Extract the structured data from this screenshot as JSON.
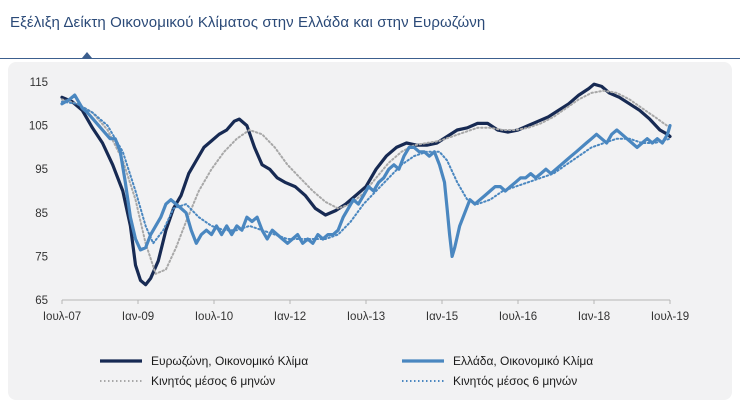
{
  "title": "Εξέλιξη Δείκτη Οικονομικού Κλίματος στην Ελλάδα και στην Ευρωζώνη",
  "colors": {
    "title": "#2b4a78",
    "eurozone": "#172a53",
    "greece": "#4a87c0",
    "eurozone_ma": "#a8a8a8",
    "greece_ma": "#4a87c0"
  },
  "chart_data": {
    "type": "line",
    "title": "Εξέλιξη Δείκτη Οικονομικού Κλίματος στην Ελλάδα και στην Ευρωζώνη",
    "xlabel": "",
    "ylabel": "",
    "x_ticks": [
      "Ιουλ-07",
      "Ιαν-09",
      "Ιουλ-10",
      "Ιαν-12",
      "Ιουλ-13",
      "Ιαν-15",
      "Ιουλ-16",
      "Ιαν-18",
      "Ιουλ-19"
    ],
    "y_ticks": [
      65,
      75,
      85,
      95,
      105,
      115
    ],
    "ylim": [
      65,
      115
    ],
    "xlim": [
      2007.5,
      2019.5
    ],
    "grid": false,
    "legend_placement": "bottom",
    "legend": {
      "eurozone": "Ευρωζώνη, Οικονομικό Κλίμα",
      "greece": "Ελλάδα, Οικονομικό Κλίμα",
      "eurozone_ma": "Κινητός μέσος 6 μηνών",
      "greece_ma": "Κινητός μέσος 6 μηνών"
    },
    "series": [
      {
        "name": "Ευρωζώνη, Οικονομικό Κλίμα",
        "key": "eurozone",
        "style": "solid",
        "points": [
          [
            2007.5,
            111.5
          ],
          [
            2007.7,
            110.5
          ],
          [
            2007.9,
            108.5
          ],
          [
            2008.1,
            104.5
          ],
          [
            2008.3,
            101
          ],
          [
            2008.5,
            96
          ],
          [
            2008.7,
            90
          ],
          [
            2008.85,
            82
          ],
          [
            2008.95,
            73
          ],
          [
            2009.05,
            69.5
          ],
          [
            2009.15,
            68.5
          ],
          [
            2009.25,
            70
          ],
          [
            2009.4,
            74
          ],
          [
            2009.55,
            81
          ],
          [
            2009.7,
            86
          ],
          [
            2009.85,
            89
          ],
          [
            2010.0,
            94
          ],
          [
            2010.15,
            97
          ],
          [
            2010.3,
            100
          ],
          [
            2010.45,
            101.5
          ],
          [
            2010.6,
            103
          ],
          [
            2010.75,
            104
          ],
          [
            2010.9,
            106
          ],
          [
            2011.0,
            106.5
          ],
          [
            2011.15,
            105
          ],
          [
            2011.3,
            100
          ],
          [
            2011.45,
            96
          ],
          [
            2011.6,
            95
          ],
          [
            2011.75,
            93
          ],
          [
            2011.9,
            92
          ],
          [
            2012.1,
            91
          ],
          [
            2012.3,
            89
          ],
          [
            2012.5,
            86
          ],
          [
            2012.7,
            84.5
          ],
          [
            2012.9,
            85.5
          ],
          [
            2013.1,
            87
          ],
          [
            2013.3,
            89
          ],
          [
            2013.5,
            91
          ],
          [
            2013.7,
            95
          ],
          [
            2013.9,
            98
          ],
          [
            2014.1,
            100
          ],
          [
            2014.3,
            101
          ],
          [
            2014.5,
            100.5
          ],
          [
            2014.7,
            100.5
          ],
          [
            2014.9,
            101
          ],
          [
            2015.1,
            102.5
          ],
          [
            2015.3,
            104
          ],
          [
            2015.5,
            104.5
          ],
          [
            2015.7,
            105.5
          ],
          [
            2015.9,
            105.5
          ],
          [
            2016.1,
            104
          ],
          [
            2016.3,
            103.5
          ],
          [
            2016.5,
            104
          ],
          [
            2016.7,
            105
          ],
          [
            2016.9,
            106
          ],
          [
            2017.1,
            107
          ],
          [
            2017.3,
            108.5
          ],
          [
            2017.5,
            110
          ],
          [
            2017.7,
            112
          ],
          [
            2017.9,
            113.5
          ],
          [
            2018.0,
            114.5
          ],
          [
            2018.15,
            114
          ],
          [
            2018.3,
            112.5
          ],
          [
            2018.5,
            111.5
          ],
          [
            2018.7,
            110
          ],
          [
            2018.9,
            108.5
          ],
          [
            2019.1,
            106.5
          ],
          [
            2019.3,
            104
          ],
          [
            2019.45,
            103
          ],
          [
            2019.5,
            102.5
          ]
        ]
      },
      {
        "name": "Κινητός μέσος 6 μηνών",
        "key": "eurozone_ma",
        "style": "dotted",
        "points": [
          [
            2007.5,
            111
          ],
          [
            2007.8,
            110
          ],
          [
            2008.1,
            108
          ],
          [
            2008.4,
            104
          ],
          [
            2008.7,
            97
          ],
          [
            2008.95,
            88
          ],
          [
            2009.15,
            78
          ],
          [
            2009.35,
            71
          ],
          [
            2009.55,
            72
          ],
          [
            2009.75,
            77
          ],
          [
            2009.95,
            83
          ],
          [
            2010.2,
            90
          ],
          [
            2010.45,
            95
          ],
          [
            2010.7,
            99
          ],
          [
            2010.95,
            102
          ],
          [
            2011.2,
            104
          ],
          [
            2011.45,
            103
          ],
          [
            2011.7,
            100
          ],
          [
            2011.95,
            96
          ],
          [
            2012.2,
            93
          ],
          [
            2012.45,
            90
          ],
          [
            2012.7,
            87.5
          ],
          [
            2012.95,
            86
          ],
          [
            2013.2,
            87
          ],
          [
            2013.45,
            89.5
          ],
          [
            2013.7,
            93
          ],
          [
            2013.95,
            96.5
          ],
          [
            2014.2,
            99
          ],
          [
            2014.45,
            100.5
          ],
          [
            2014.7,
            101
          ],
          [
            2014.95,
            101.5
          ],
          [
            2015.2,
            102.5
          ],
          [
            2015.45,
            103.5
          ],
          [
            2015.7,
            104.5
          ],
          [
            2015.95,
            104.5
          ],
          [
            2016.2,
            104
          ],
          [
            2016.45,
            104
          ],
          [
            2016.7,
            104.5
          ],
          [
            2016.95,
            105.5
          ],
          [
            2017.2,
            107
          ],
          [
            2017.45,
            109
          ],
          [
            2017.7,
            111
          ],
          [
            2017.95,
            112.5
          ],
          [
            2018.2,
            113
          ],
          [
            2018.45,
            112.5
          ],
          [
            2018.7,
            111
          ],
          [
            2018.95,
            109
          ],
          [
            2019.2,
            107
          ],
          [
            2019.5,
            104.5
          ]
        ]
      },
      {
        "name": "Ελλάδα, Οικονομικό Κλίμα",
        "key": "greece",
        "style": "solid",
        "points": [
          [
            2007.5,
            110
          ],
          [
            2007.65,
            111
          ],
          [
            2007.75,
            112
          ],
          [
            2007.9,
            109
          ],
          [
            2008.0,
            108
          ],
          [
            2008.15,
            106
          ],
          [
            2008.3,
            104
          ],
          [
            2008.45,
            102
          ],
          [
            2008.55,
            102
          ],
          [
            2008.65,
            99
          ],
          [
            2008.75,
            92
          ],
          [
            2008.85,
            84
          ],
          [
            2008.95,
            79
          ],
          [
            2009.05,
            76.5
          ],
          [
            2009.15,
            77
          ],
          [
            2009.25,
            80
          ],
          [
            2009.35,
            82
          ],
          [
            2009.45,
            84
          ],
          [
            2009.55,
            87
          ],
          [
            2009.65,
            88
          ],
          [
            2009.75,
            87
          ],
          [
            2009.85,
            86
          ],
          [
            2009.95,
            85
          ],
          [
            2010.05,
            81
          ],
          [
            2010.15,
            78
          ],
          [
            2010.25,
            80
          ],
          [
            2010.35,
            81
          ],
          [
            2010.45,
            80
          ],
          [
            2010.55,
            82
          ],
          [
            2010.65,
            80
          ],
          [
            2010.75,
            82
          ],
          [
            2010.85,
            80
          ],
          [
            2010.95,
            82
          ],
          [
            2011.05,
            81
          ],
          [
            2011.15,
            84
          ],
          [
            2011.25,
            83
          ],
          [
            2011.35,
            84
          ],
          [
            2011.45,
            81
          ],
          [
            2011.55,
            79
          ],
          [
            2011.65,
            81
          ],
          [
            2011.75,
            80
          ],
          [
            2011.85,
            79
          ],
          [
            2011.95,
            78
          ],
          [
            2012.05,
            79
          ],
          [
            2012.15,
            80
          ],
          [
            2012.25,
            78
          ],
          [
            2012.35,
            79
          ],
          [
            2012.45,
            78
          ],
          [
            2012.55,
            80
          ],
          [
            2012.65,
            79
          ],
          [
            2012.75,
            80
          ],
          [
            2012.85,
            80
          ],
          [
            2012.95,
            81
          ],
          [
            2013.05,
            84
          ],
          [
            2013.15,
            86
          ],
          [
            2013.25,
            88
          ],
          [
            2013.35,
            87
          ],
          [
            2013.45,
            89
          ],
          [
            2013.55,
            91
          ],
          [
            2013.65,
            90
          ],
          [
            2013.75,
            92
          ],
          [
            2013.85,
            93
          ],
          [
            2013.95,
            95
          ],
          [
            2014.05,
            96
          ],
          [
            2014.15,
            95
          ],
          [
            2014.25,
            98
          ],
          [
            2014.35,
            100
          ],
          [
            2014.45,
            100
          ],
          [
            2014.55,
            99
          ],
          [
            2014.65,
            99
          ],
          [
            2014.75,
            98
          ],
          [
            2014.85,
            99
          ],
          [
            2014.95,
            96
          ],
          [
            2015.05,
            92
          ],
          [
            2015.1,
            86
          ],
          [
            2015.15,
            80
          ],
          [
            2015.2,
            75
          ],
          [
            2015.25,
            77
          ],
          [
            2015.35,
            82
          ],
          [
            2015.45,
            85
          ],
          [
            2015.55,
            88
          ],
          [
            2015.65,
            87
          ],
          [
            2015.75,
            88
          ],
          [
            2015.85,
            89
          ],
          [
            2015.95,
            90
          ],
          [
            2016.05,
            91
          ],
          [
            2016.15,
            91
          ],
          [
            2016.25,
            90
          ],
          [
            2016.35,
            91
          ],
          [
            2016.45,
            92
          ],
          [
            2016.55,
            93
          ],
          [
            2016.65,
            93
          ],
          [
            2016.75,
            94
          ],
          [
            2016.85,
            93
          ],
          [
            2016.95,
            94
          ],
          [
            2017.05,
            95
          ],
          [
            2017.15,
            94
          ],
          [
            2017.25,
            95
          ],
          [
            2017.35,
            96
          ],
          [
            2017.45,
            97
          ],
          [
            2017.55,
            98
          ],
          [
            2017.65,
            99
          ],
          [
            2017.75,
            100
          ],
          [
            2017.85,
            101
          ],
          [
            2017.95,
            102
          ],
          [
            2018.05,
            103
          ],
          [
            2018.15,
            102
          ],
          [
            2018.25,
            101
          ],
          [
            2018.35,
            103
          ],
          [
            2018.45,
            104
          ],
          [
            2018.55,
            103
          ],
          [
            2018.65,
            102
          ],
          [
            2018.75,
            101
          ],
          [
            2018.85,
            100
          ],
          [
            2018.95,
            101
          ],
          [
            2019.05,
            102
          ],
          [
            2019.15,
            101
          ],
          [
            2019.25,
            102
          ],
          [
            2019.35,
            101
          ],
          [
            2019.45,
            103
          ],
          [
            2019.5,
            105
          ]
        ]
      },
      {
        "name": "Κινητός μέσος 6 μηνών",
        "key": "greece_ma",
        "style": "dotted",
        "points": [
          [
            2007.5,
            110.5
          ],
          [
            2007.8,
            110
          ],
          [
            2008.1,
            108
          ],
          [
            2008.4,
            105
          ],
          [
            2008.7,
            99
          ],
          [
            2008.95,
            90
          ],
          [
            2009.15,
            82
          ],
          [
            2009.3,
            78
          ],
          [
            2009.5,
            81
          ],
          [
            2009.7,
            86
          ],
          [
            2009.95,
            87
          ],
          [
            2010.2,
            84
          ],
          [
            2010.45,
            82
          ],
          [
            2010.7,
            81
          ],
          [
            2010.95,
            81
          ],
          [
            2011.2,
            82
          ],
          [
            2011.45,
            81
          ],
          [
            2011.7,
            80
          ],
          [
            2011.95,
            79
          ],
          [
            2012.2,
            79
          ],
          [
            2012.45,
            79
          ],
          [
            2012.7,
            79
          ],
          [
            2012.95,
            80
          ],
          [
            2013.2,
            83
          ],
          [
            2013.45,
            87
          ],
          [
            2013.7,
            90
          ],
          [
            2013.95,
            93
          ],
          [
            2014.2,
            96
          ],
          [
            2014.45,
            98
          ],
          [
            2014.7,
            99
          ],
          [
            2014.95,
            99
          ],
          [
            2015.1,
            97
          ],
          [
            2015.3,
            92
          ],
          [
            2015.5,
            88
          ],
          [
            2015.7,
            87
          ],
          [
            2015.95,
            88
          ],
          [
            2016.2,
            90
          ],
          [
            2016.45,
            91
          ],
          [
            2016.7,
            92
          ],
          [
            2016.95,
            93
          ],
          [
            2017.2,
            94
          ],
          [
            2017.45,
            96
          ],
          [
            2017.7,
            98
          ],
          [
            2017.95,
            100
          ],
          [
            2018.2,
            101
          ],
          [
            2018.45,
            102
          ],
          [
            2018.7,
            102
          ],
          [
            2018.95,
            101
          ],
          [
            2019.2,
            101
          ],
          [
            2019.5,
            102
          ]
        ]
      }
    ]
  }
}
